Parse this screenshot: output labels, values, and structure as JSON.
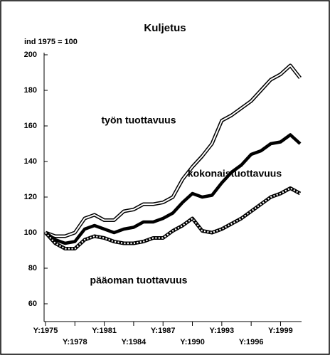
{
  "chart_data": {
    "type": "line",
    "title": "Kuljetus",
    "y_label": "ind 1975 = 100",
    "x": [
      1975,
      1976,
      1977,
      1978,
      1979,
      1980,
      1981,
      1982,
      1983,
      1984,
      1985,
      1986,
      1987,
      1988,
      1989,
      1990,
      1991,
      1992,
      1993,
      1994,
      1995,
      1996,
      1997,
      1998,
      1999,
      2000,
      2001
    ],
    "series": [
      {
        "name": "työn tuottavuus",
        "color": "#000000",
        "style": "double",
        "values": [
          100,
          98,
          98,
          100,
          108,
          110,
          107,
          107,
          112,
          113,
          116,
          116,
          117,
          120,
          130,
          137,
          143,
          150,
          163,
          166,
          170,
          174,
          180,
          186,
          189,
          194,
          187
        ]
      },
      {
        "name": "kokonaistuottavuus",
        "color": "#000000",
        "style": "thick",
        "values": [
          100,
          96,
          94,
          95,
          102,
          104,
          102,
          100,
          102,
          103,
          106,
          106,
          108,
          111,
          117,
          122,
          120,
          121,
          128,
          134,
          138,
          144,
          146,
          150,
          151,
          155,
          150
        ]
      },
      {
        "name": "pääoman tuottavuus",
        "color": "#000000",
        "style": "dotted",
        "values": [
          100,
          94,
          91,
          91,
          96,
          98,
          97,
          95,
          94,
          94,
          95,
          97,
          97,
          101,
          104,
          108,
          101,
          100,
          102,
          105,
          108,
          112,
          116,
          120,
          122,
          125,
          122
        ]
      }
    ],
    "xlim": [
      1975,
      2001
    ],
    "ylim": [
      50,
      200
    ],
    "yticks": [
      60,
      80,
      100,
      120,
      140,
      160,
      180,
      200
    ],
    "xticks": [
      {
        "value": 1975,
        "label": "Y:1975"
      },
      {
        "value": 1978,
        "label": "Y:1978"
      },
      {
        "value": 1981,
        "label": "Y:1981"
      },
      {
        "value": 1984,
        "label": "Y:1984"
      },
      {
        "value": 1987,
        "label": "Y:1987"
      },
      {
        "value": 1990,
        "label": "Y:1990"
      },
      {
        "value": 1993,
        "label": "Y:1993"
      },
      {
        "value": 1996,
        "label": "Y:1996"
      },
      {
        "value": 1999,
        "label": "Y:1999"
      }
    ]
  }
}
